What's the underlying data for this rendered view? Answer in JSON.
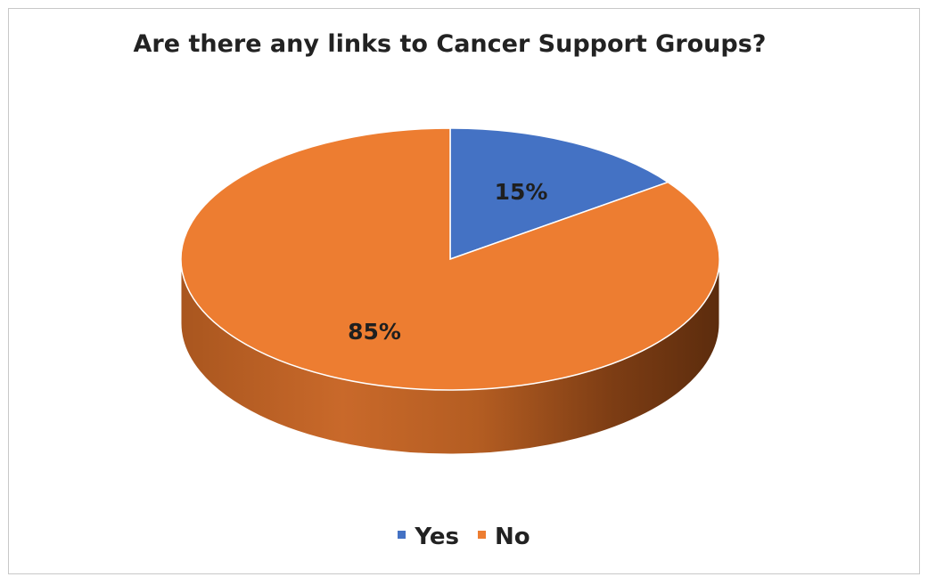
{
  "chart_data": {
    "type": "pie",
    "title": "Are there any links to Cancer Support Groups?",
    "categories": [
      "Yes",
      "No"
    ],
    "values": [
      15,
      85
    ],
    "data_labels": [
      "15%",
      "85%"
    ],
    "colors": [
      "#4472c4",
      "#ed7d31"
    ],
    "legend_position": "bottom",
    "style": "3d"
  }
}
